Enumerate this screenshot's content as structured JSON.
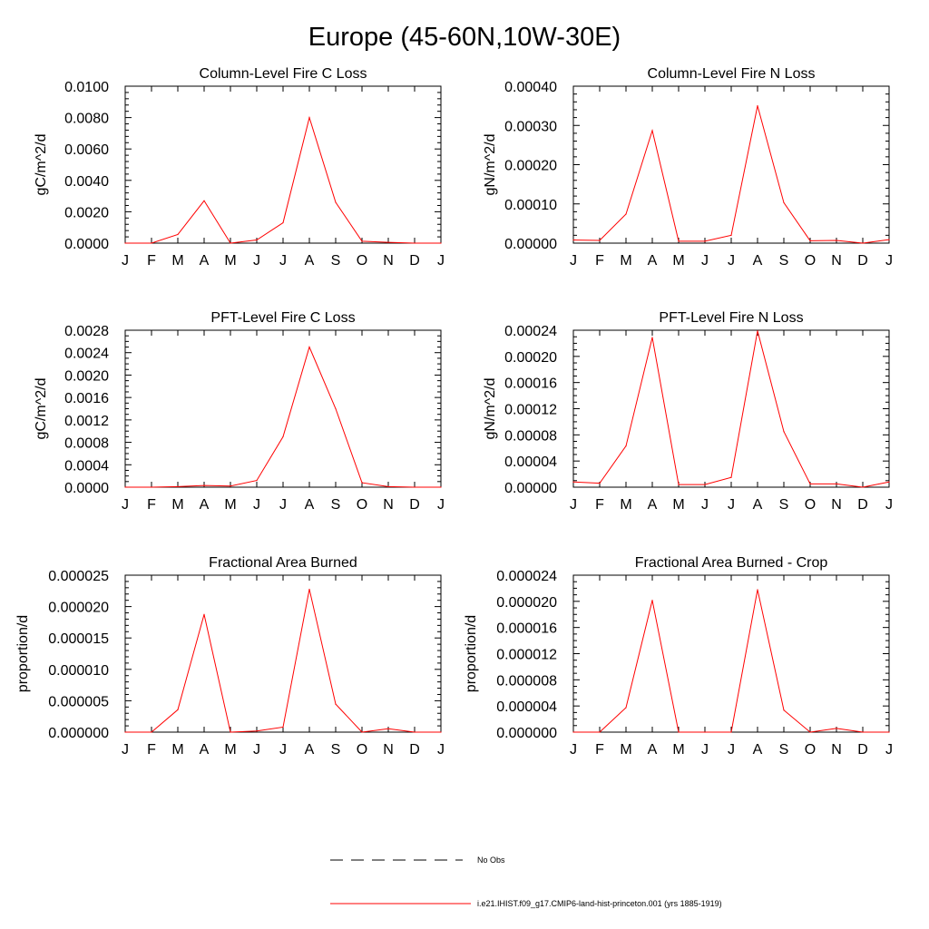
{
  "figure": {
    "title": "Europe (45-60N,10W-30E)"
  },
  "colors": {
    "model": "#ff0000",
    "obs": "#000000"
  },
  "chart_data": [
    {
      "type": "line",
      "title": "Column-Level Fire C Loss",
      "ylabel": "gC/m^2/d",
      "categories": [
        "J",
        "F",
        "M",
        "A",
        "M",
        "J",
        "J",
        "A",
        "S",
        "O",
        "N",
        "D",
        "J"
      ],
      "yticks": [
        "0.0000",
        "0.0020",
        "0.0040",
        "0.0060",
        "0.0080",
        "0.0100"
      ],
      "ylim": [
        0,
        0.01
      ],
      "y_minor_per_major": 4,
      "series": [
        {
          "name": "i.e21.IHIST.f09_g17.CMIP6-land-hist-princeton.001 (yrs 1885-1919)",
          "values": [
            0.0,
            0.0,
            0.00055,
            0.0027,
            0.0,
            0.0002,
            0.0013,
            0.008,
            0.0026,
            0.00012,
            5e-05,
            0.0,
            0.0
          ]
        }
      ]
    },
    {
      "type": "line",
      "title": "Column-Level Fire N Loss",
      "ylabel": "gN/m^2/d",
      "categories": [
        "J",
        "F",
        "M",
        "A",
        "M",
        "J",
        "J",
        "A",
        "S",
        "O",
        "N",
        "D",
        "J"
      ],
      "yticks": [
        "0.00000",
        "0.00010",
        "0.00020",
        "0.00030",
        "0.00040"
      ],
      "ylim": [
        0,
        0.0004
      ],
      "y_minor_per_major": 4,
      "series": [
        {
          "name": "i.e21.IHIST.f09_g17.CMIP6-land-hist-princeton.001 (yrs 1885-1919)",
          "values": [
            8e-06,
            7e-06,
            7.4e-05,
            0.000287,
            5e-06,
            5e-06,
            2e-05,
            0.00035,
            0.000103,
            6e-06,
            7e-06,
            0.0,
            9e-06
          ]
        }
      ]
    },
    {
      "type": "line",
      "title": "PFT-Level Fire C Loss",
      "ylabel": "gC/m^2/d",
      "categories": [
        "J",
        "F",
        "M",
        "A",
        "M",
        "J",
        "J",
        "A",
        "S",
        "O",
        "N",
        "D",
        "J"
      ],
      "yticks": [
        "0.0000",
        "0.0004",
        "0.0008",
        "0.0012",
        "0.0016",
        "0.0020",
        "0.0024",
        "0.0028"
      ],
      "ylim": [
        0,
        0.0028
      ],
      "y_minor_per_major": 3,
      "series": [
        {
          "name": "i.e21.IHIST.f09_g17.CMIP6-land-hist-princeton.001 (yrs 1885-1919)",
          "values": [
            0.0,
            0.0,
            1e-05,
            3e-05,
            2e-05,
            0.00012,
            0.0009,
            0.0025,
            0.0014,
            8e-05,
            1e-05,
            0.0,
            0.0
          ]
        }
      ]
    },
    {
      "type": "line",
      "title": "PFT-Level Fire N Loss",
      "ylabel": "gN/m^2/d",
      "categories": [
        "J",
        "F",
        "M",
        "A",
        "M",
        "J",
        "J",
        "A",
        "S",
        "O",
        "N",
        "D",
        "J"
      ],
      "yticks": [
        "0.00000",
        "0.00004",
        "0.00008",
        "0.00012",
        "0.00016",
        "0.00020",
        "0.00024"
      ],
      "ylim": [
        0,
        0.00024
      ],
      "y_minor_per_major": 3,
      "series": [
        {
          "name": "i.e21.IHIST.f09_g17.CMIP6-land-hist-princeton.001 (yrs 1885-1919)",
          "values": [
            8e-06,
            6e-06,
            6.3e-05,
            0.000229,
            4e-06,
            4e-06,
            1.5e-05,
            0.000239,
            8.5e-05,
            5e-06,
            5e-06,
            0.0,
            8e-06
          ]
        }
      ]
    },
    {
      "type": "line",
      "title": "Fractional Area Burned",
      "ylabel": "proportion/d",
      "categories": [
        "J",
        "F",
        "M",
        "A",
        "M",
        "J",
        "J",
        "A",
        "S",
        "O",
        "N",
        "D",
        "J"
      ],
      "yticks": [
        "0.000000",
        "0.000005",
        "0.000010",
        "0.000015",
        "0.000020",
        "0.000025"
      ],
      "ylim": [
        0,
        2.8e-05
      ],
      "y_minor_per_major": 4,
      "series": [
        {
          "name": "i.e21.IHIST.f09_g17.CMIP6-land-hist-princeton.001 (yrs 1885-1919)",
          "values": [
            0.0,
            0.0,
            4e-06,
            2.1e-05,
            0.0,
            2e-07,
            9e-07,
            2.55e-05,
            5e-06,
            0.0,
            6e-07,
            0.0,
            0.0
          ]
        }
      ]
    },
    {
      "type": "line",
      "title": "Fractional Area Burned - Crop",
      "ylabel": "proportion/d",
      "categories": [
        "J",
        "F",
        "M",
        "A",
        "M",
        "J",
        "J",
        "A",
        "S",
        "O",
        "N",
        "D",
        "J"
      ],
      "yticks": [
        "0.000000",
        "0.000004",
        "0.000008",
        "0.000012",
        "0.000016",
        "0.000020",
        "0.000024"
      ],
      "ylim": [
        0,
        2.5e-05
      ],
      "y_minor_per_major": 3,
      "series": [
        {
          "name": "i.e21.IHIST.f09_g17.CMIP6-land-hist-princeton.001 (yrs 1885-1919)",
          "values": [
            0.0,
            0.0,
            3.9e-06,
            2.1e-05,
            0.0,
            0.0,
            0.0,
            2.27e-05,
            3.5e-06,
            0.0,
            6e-07,
            0.0,
            0.0
          ]
        }
      ]
    }
  ],
  "legend": {
    "items": [
      {
        "label": "No Obs",
        "style": "dashed",
        "color": "#000000"
      },
      {
        "label": "i.e21.IHIST.f09_g17.CMIP6-land-hist-princeton.001 (yrs 1885-1919)",
        "style": "solid",
        "color": "#ff0000"
      }
    ]
  }
}
